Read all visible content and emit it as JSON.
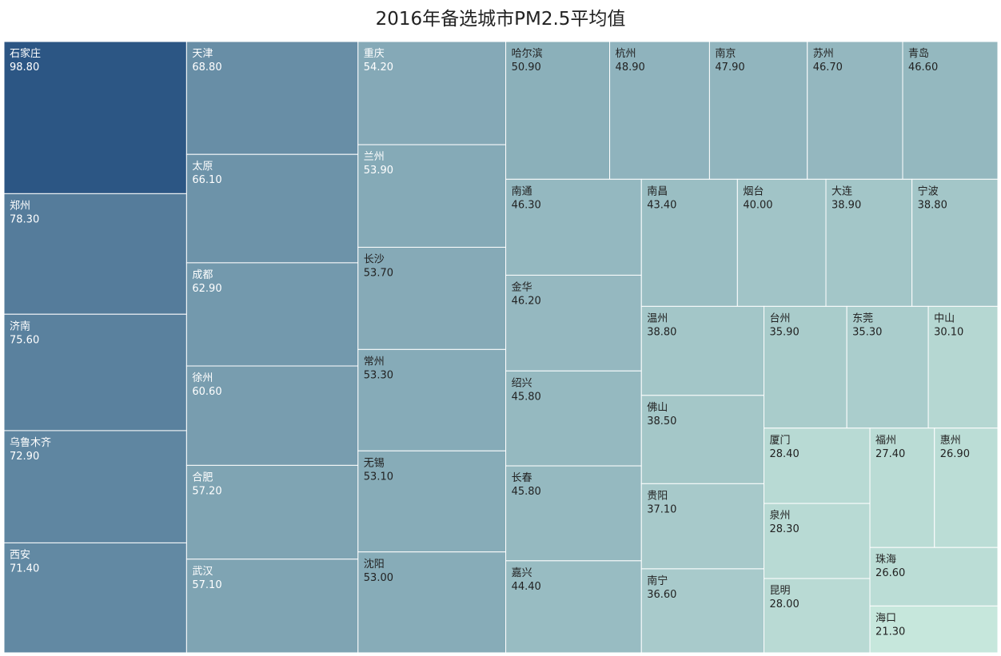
{
  "chart_data": {
    "type": "treemap",
    "title": "2016年备选城市PM2.5平均值",
    "value_format": "0.00",
    "color_scale": {
      "min_color": "#c6e7dc",
      "max_color": "#2c5684"
    },
    "categories": [
      "石家庄",
      "郑州",
      "济南",
      "乌鲁木齐",
      "西安",
      "天津",
      "太原",
      "成都",
      "徐州",
      "合肥",
      "武汉",
      "重庆",
      "兰州",
      "长沙",
      "常州",
      "无锡",
      "沈阳",
      "哈尔滨",
      "杭州",
      "南京",
      "苏州",
      "青岛",
      "南通",
      "金华",
      "绍兴",
      "长春",
      "嘉兴",
      "南昌",
      "烟台",
      "大连",
      "宁波",
      "温州",
      "佛山",
      "贵阳",
      "南宁",
      "台州",
      "东莞",
      "中山",
      "厦门",
      "泉州",
      "昆明",
      "福州",
      "惠州",
      "珠海",
      "海口"
    ],
    "values": [
      98.8,
      78.3,
      75.6,
      72.9,
      71.4,
      68.8,
      66.1,
      62.9,
      60.6,
      57.2,
      57.1,
      54.2,
      53.9,
      53.7,
      53.3,
      53.1,
      53.0,
      50.9,
      48.9,
      47.9,
      46.7,
      46.6,
      46.3,
      46.2,
      45.8,
      45.8,
      44.4,
      43.4,
      40.0,
      38.9,
      38.8,
      38.8,
      38.5,
      37.1,
      36.6,
      35.9,
      35.3,
      30.1,
      28.4,
      28.3,
      28.0,
      27.4,
      26.9,
      26.6,
      21.3
    ]
  }
}
